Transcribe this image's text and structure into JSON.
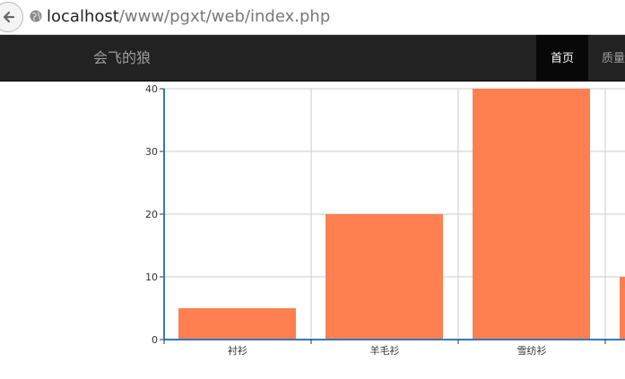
{
  "browser": {
    "url_host": "localhost",
    "url_path": "/www/pgxt/web/index.php",
    "back_icon": "back-arrow-icon",
    "site_icon": "globe-icon"
  },
  "navbar": {
    "brand": "会飞的狼",
    "items": [
      {
        "label": "首页",
        "active": true
      },
      {
        "label": "质量",
        "active": false
      }
    ]
  },
  "colors": {
    "bar": "#ff7f50",
    "axis": "#337ab7",
    "grid": "#cccccc",
    "navbar_bg": "#222222"
  },
  "chart_data": {
    "type": "bar",
    "categories": [
      "衬衫",
      "羊毛衫",
      "雪纺衫",
      ""
    ],
    "values": [
      5,
      20,
      40,
      10
    ],
    "ylim": [
      0,
      40
    ],
    "yticks": [
      0,
      10,
      20,
      30,
      40
    ],
    "grid": true,
    "title": "",
    "xlabel": "",
    "ylabel": ""
  }
}
